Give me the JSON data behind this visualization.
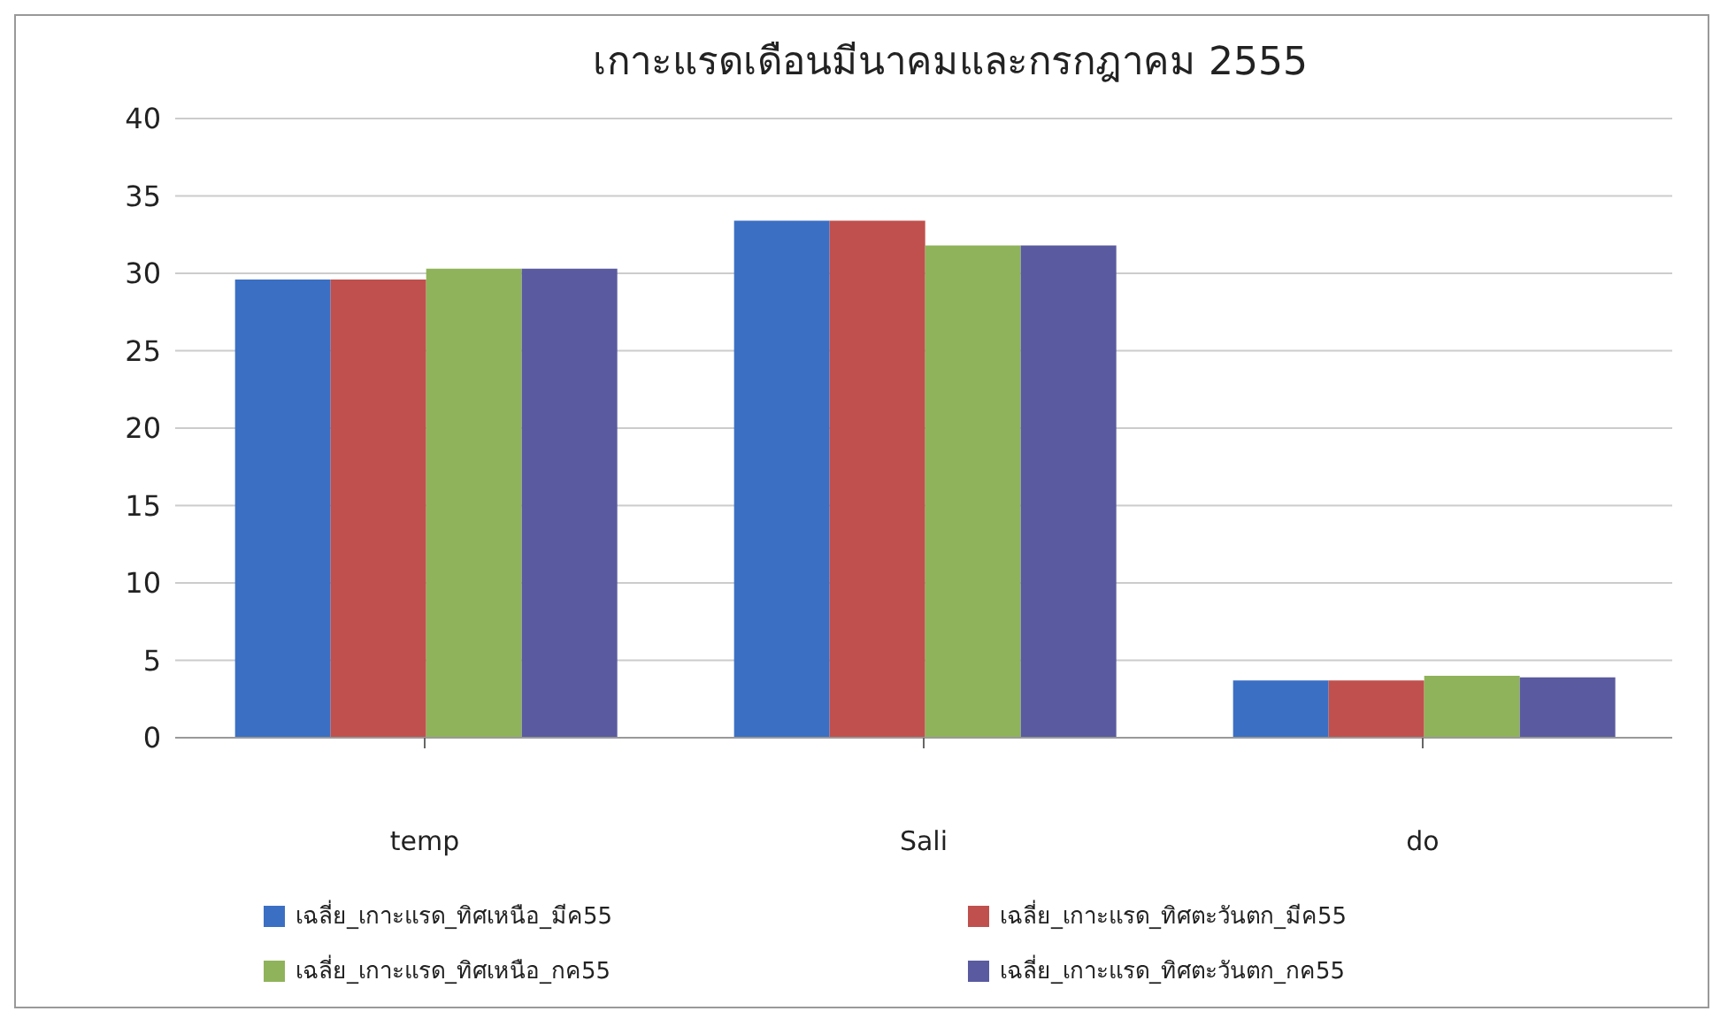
{
  "chart_data": {
    "type": "bar",
    "title": "เกาะแรดเดือนมีนาคมและกรกฎาคม 2555",
    "categories": [
      "temp",
      "Sali",
      "do"
    ],
    "series": [
      {
        "name": "เฉลี่ย_เกาะแรด_ทิศเหนือ_มีค55",
        "color": "#3b6fc4",
        "values": [
          29.6,
          33.4,
          3.7
        ]
      },
      {
        "name": "เฉลี่ย_เกาะแรด_ทิศตะวันตก_มีค55",
        "color": "#c0504d",
        "values": [
          29.6,
          33.4,
          3.7
        ]
      },
      {
        "name": "เฉลี่ย_เกาะแรด_ทิศเหนือ_กค55",
        "color": "#8fb35a",
        "values": [
          30.3,
          31.8,
          4.0
        ]
      },
      {
        "name": "เฉลี่ย_เกาะแรด_ทิศตะวันตก_กค55",
        "color": "#5a5aa0",
        "values": [
          30.3,
          31.8,
          3.9
        ]
      }
    ],
    "ylim": [
      0,
      40
    ],
    "yticks": [
      0,
      5,
      10,
      15,
      20,
      25,
      30,
      35,
      40
    ],
    "grid": "y",
    "legend": "bottom"
  }
}
